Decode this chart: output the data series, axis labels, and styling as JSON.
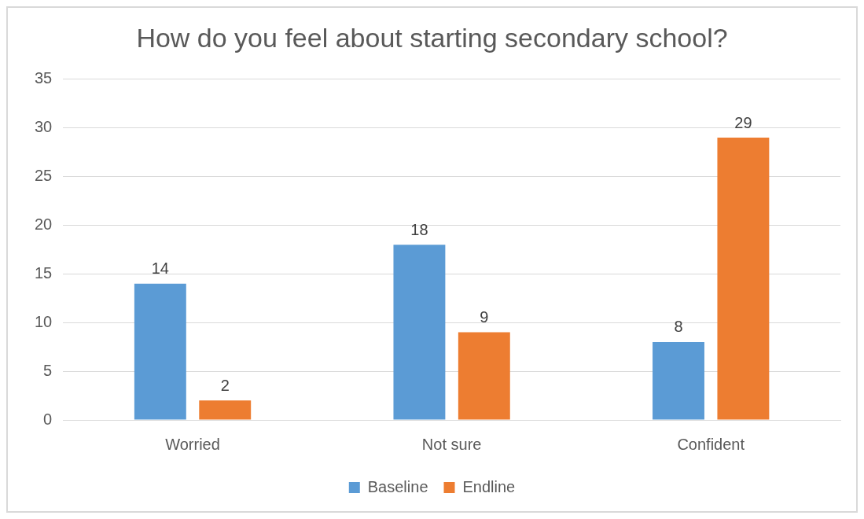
{
  "chart_data": {
    "type": "bar",
    "title": "How do you feel about starting secondary school?",
    "categories": [
      "Worried",
      "Not sure",
      "Confident"
    ],
    "series": [
      {
        "name": "Baseline",
        "color": "#5b9bd5",
        "values": [
          14,
          18,
          8
        ]
      },
      {
        "name": "Endline",
        "color": "#ed7d31",
        "values": [
          2,
          9,
          29
        ]
      }
    ],
    "ylim": [
      0,
      35
    ],
    "yticks": [
      0,
      5,
      10,
      15,
      20,
      25,
      30,
      35
    ],
    "grid": "y",
    "legend": "bottom",
    "data_labels": true
  }
}
